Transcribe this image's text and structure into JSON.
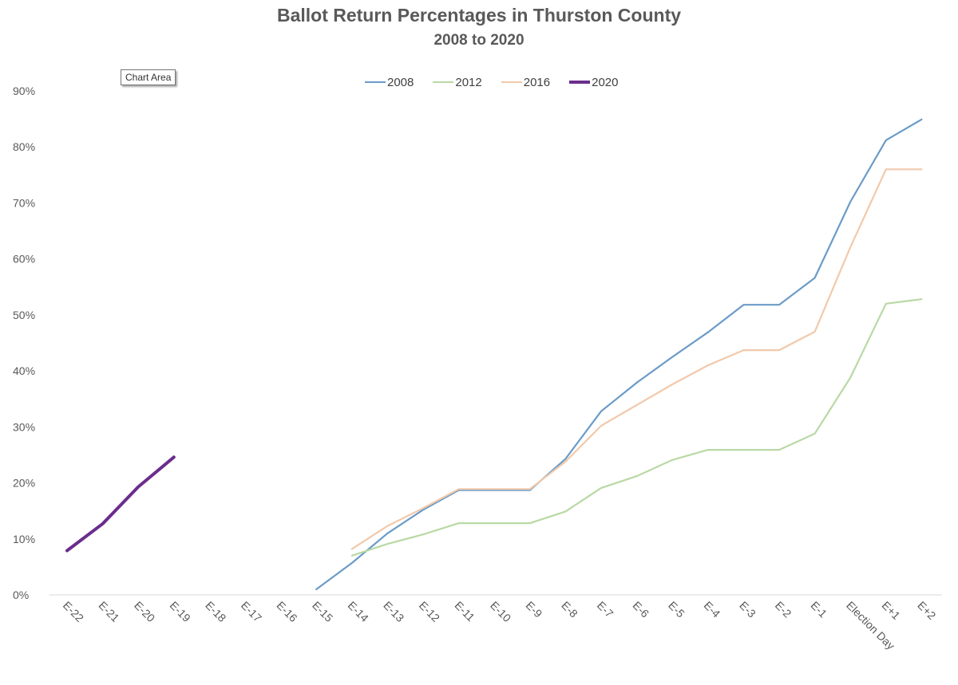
{
  "title": "Ballot Return Percentages in Thurston County",
  "subtitle": "2008 to 2020",
  "tooltip": "Chart Area",
  "colors": {
    "2008": "#6a9bc8",
    "2012": "#b9d9a5",
    "2016": "#f1c9ab",
    "2020": "#6b2d8c",
    "axis": "#d9d9d9",
    "text": "#595959"
  },
  "chart_data": {
    "type": "line",
    "title": "Ballot Return Percentages in Thurston County",
    "subtitle": "2008 to 2020",
    "xlabel": "",
    "ylabel": "",
    "ylim": [
      0,
      90
    ],
    "yticks": [
      "0%",
      "10%",
      "20%",
      "30%",
      "40%",
      "50%",
      "60%",
      "70%",
      "80%",
      "90%"
    ],
    "grid": false,
    "legend": "top-center",
    "categories": [
      "E-22",
      "E-21",
      "E-20",
      "E-19",
      "E-18",
      "E-17",
      "E-16",
      "E-15",
      "E-14",
      "E-13",
      "E-12",
      "E-11",
      "E-10",
      "E-9",
      "E-8",
      "E-7",
      "E-6",
      "E-5",
      "E-4",
      "E-3",
      "E-2",
      "E-1",
      "Election Day",
      "E+1",
      "E+2"
    ],
    "series": [
      {
        "name": "2008",
        "values": [
          null,
          null,
          null,
          null,
          null,
          null,
          null,
          1,
          5.7,
          11,
          15.2,
          18.7,
          18.7,
          18.7,
          24.3,
          32.8,
          37.9,
          42.5,
          46.9,
          51.8,
          51.8,
          56.6,
          70.2,
          81.2,
          84.9
        ]
      },
      {
        "name": "2012",
        "values": [
          null,
          null,
          null,
          null,
          null,
          null,
          null,
          null,
          7,
          9.1,
          10.8,
          12.8,
          12.8,
          12.8,
          14.9,
          19.1,
          21.2,
          24.1,
          25.9,
          25.9,
          25.9,
          28.8,
          38.8,
          52,
          52.8
        ]
      },
      {
        "name": "2016",
        "values": [
          null,
          null,
          null,
          null,
          null,
          null,
          null,
          null,
          8.2,
          12.3,
          15.5,
          18.9,
          18.9,
          18.9,
          23.8,
          30.2,
          33.9,
          37.6,
          41,
          43.7,
          43.7,
          47,
          62.1,
          76,
          76
        ]
      },
      {
        "name": "2020",
        "values": [
          7.9,
          12.7,
          19.3,
          24.6,
          null,
          null,
          null,
          null,
          null,
          null,
          null,
          null,
          null,
          null,
          null,
          null,
          null,
          null,
          null,
          null,
          null,
          null,
          null,
          null,
          null
        ]
      }
    ]
  }
}
